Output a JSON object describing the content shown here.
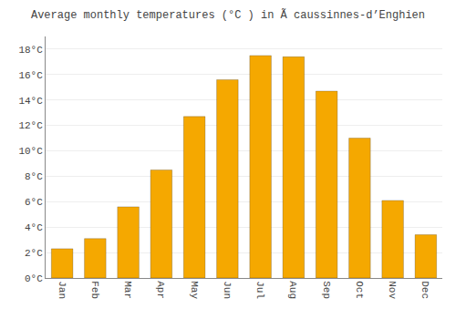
{
  "chart_data": {
    "type": "bar",
    "title": "Average monthly temperatures (°C ) in Ã caussinnes-d’Enghien",
    "categories": [
      "Jan",
      "Feb",
      "Mar",
      "Apr",
      "May",
      "Jun",
      "Jul",
      "Aug",
      "Sep",
      "Oct",
      "Nov",
      "Dec"
    ],
    "values": [
      2.3,
      3.1,
      5.6,
      8.5,
      12.7,
      15.6,
      17.5,
      17.4,
      14.7,
      11.0,
      6.1,
      3.4
    ],
    "color": "#F5A800",
    "ylim": [
      0,
      19
    ],
    "yticks": [
      {
        "value": 0,
        "label": "0°C"
      },
      {
        "value": 2,
        "label": "2°C"
      },
      {
        "value": 4,
        "label": "4°C"
      },
      {
        "value": 6,
        "label": "6°C"
      },
      {
        "value": 8,
        "label": "8°C"
      },
      {
        "value": 10,
        "label": "10°C"
      },
      {
        "value": 12,
        "label": "12°C"
      },
      {
        "value": 14,
        "label": "14°C"
      },
      {
        "value": 16,
        "label": "16°C"
      },
      {
        "value": 18,
        "label": "18°C"
      }
    ],
    "grid": true
  }
}
